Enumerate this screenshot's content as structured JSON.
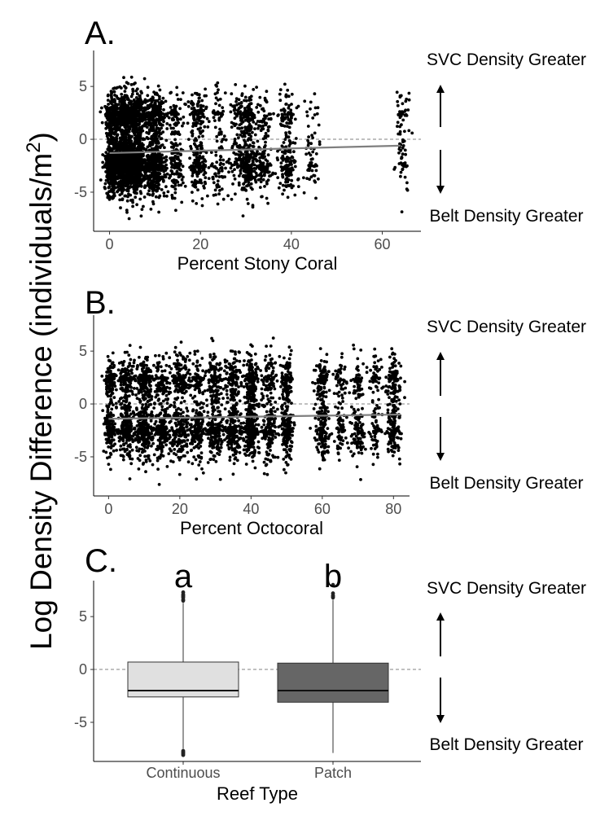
{
  "figure": {
    "ylabel_main": "Log Density Difference (individuals/m",
    "ylabel_sup": "2",
    "ylabel_close": ")"
  },
  "colors": {
    "points": "#000000",
    "trend": "#7f7f7f",
    "box_continuous": "#e0e0e0",
    "box_patch": "#666666",
    "zero_line": "#808080"
  },
  "chart_data": [
    {
      "panel": "A.",
      "type": "scatter",
      "xlabel": "Percent Stony Coral",
      "ylabel": "",
      "xlim": [
        -3.5,
        68.5
      ],
      "ylim": [
        -8.7,
        8.4
      ],
      "x_ticks": [
        0,
        20,
        40,
        60
      ],
      "y_ticks": [
        5,
        0,
        -5
      ],
      "reference_line_y": 0,
      "trend": {
        "x": [
          0,
          64
        ],
        "y": [
          -1.3,
          -0.6
        ]
      },
      "annotations": {
        "top": "SVC Density Greater",
        "bottom": "Belt Density Greater"
      },
      "point_clusters": [
        {
          "x": 0.5,
          "n": 500,
          "spread": 1.2
        },
        {
          "x": 3,
          "n": 900,
          "spread": 2.0
        },
        {
          "x": 6,
          "n": 700,
          "spread": 1.8
        },
        {
          "x": 10,
          "n": 650,
          "spread": 1.8
        },
        {
          "x": 14.5,
          "n": 180,
          "spread": 1.4
        },
        {
          "x": 19.5,
          "n": 260,
          "spread": 1.6
        },
        {
          "x": 24,
          "n": 110,
          "spread": 1.4
        },
        {
          "x": 28,
          "n": 110,
          "spread": 1.4
        },
        {
          "x": 30.5,
          "n": 300,
          "spread": 1.5
        },
        {
          "x": 34,
          "n": 150,
          "spread": 1.4
        },
        {
          "x": 39,
          "n": 200,
          "spread": 1.5
        },
        {
          "x": 44.5,
          "n": 60,
          "spread": 1.4
        },
        {
          "x": 64.5,
          "n": 80,
          "spread": 1.2
        }
      ]
    },
    {
      "panel": "B.",
      "type": "scatter",
      "xlabel": "Percent Octocoral",
      "ylabel": "",
      "xlim": [
        -4.2,
        84.5
      ],
      "ylim": [
        -8.7,
        8.4
      ],
      "x_ticks": [
        0,
        20,
        40,
        60,
        80
      ],
      "y_ticks": [
        5,
        0,
        -5
      ],
      "reference_line_y": 0,
      "trend": {
        "x": [
          0,
          82
        ],
        "y": [
          -1.4,
          -1.0
        ]
      },
      "annotations": {
        "top": "SVC Density Greater",
        "bottom": "Belt Density Greater"
      },
      "point_clusters": [
        {
          "x": 0.5,
          "n": 250,
          "spread": 1.3
        },
        {
          "x": 5,
          "n": 320,
          "spread": 2.0
        },
        {
          "x": 10,
          "n": 380,
          "spread": 2.0
        },
        {
          "x": 15,
          "n": 260,
          "spread": 2.0
        },
        {
          "x": 20,
          "n": 290,
          "spread": 2.0
        },
        {
          "x": 25,
          "n": 240,
          "spread": 2.0
        },
        {
          "x": 30,
          "n": 300,
          "spread": 2.0
        },
        {
          "x": 35,
          "n": 300,
          "spread": 2.0
        },
        {
          "x": 40,
          "n": 450,
          "spread": 1.6
        },
        {
          "x": 45,
          "n": 220,
          "spread": 1.8
        },
        {
          "x": 50,
          "n": 260,
          "spread": 1.4
        },
        {
          "x": 60,
          "n": 230,
          "spread": 1.5
        },
        {
          "x": 65,
          "n": 110,
          "spread": 1.4
        },
        {
          "x": 70,
          "n": 150,
          "spread": 1.6
        },
        {
          "x": 75,
          "n": 110,
          "spread": 1.4
        },
        {
          "x": 80,
          "n": 230,
          "spread": 1.5
        }
      ]
    },
    {
      "panel": "C.",
      "type": "box",
      "xlabel": "Reef Type",
      "ylabel": "",
      "categories": [
        "Continuous",
        "Patch"
      ],
      "group_letters": [
        "a",
        "b"
      ],
      "ylim": [
        -8.7,
        8.4
      ],
      "y_ticks": [
        5,
        0,
        -5
      ],
      "reference_line_y": 0,
      "annotations": {
        "top": "SVC Density Greater",
        "bottom": "Belt Density Greater"
      },
      "boxes": [
        {
          "name": "Continuous",
          "q1": -2.6,
          "median": -2.0,
          "q3": 0.7,
          "whisker_low": -7.5,
          "whisker_high": 6.3,
          "outliers": [
            6.5,
            6.6,
            6.8,
            6.9,
            7.0,
            7.1,
            7.3,
            -7.7,
            -7.8,
            -7.9,
            -8.0,
            -8.1
          ]
        },
        {
          "name": "Patch",
          "q1": -3.1,
          "median": -2.0,
          "q3": 0.6,
          "whisker_low": -7.9,
          "whisker_high": 6.6,
          "outliers": [
            6.8,
            6.9,
            7.0,
            7.2,
            8.0
          ]
        }
      ]
    }
  ]
}
